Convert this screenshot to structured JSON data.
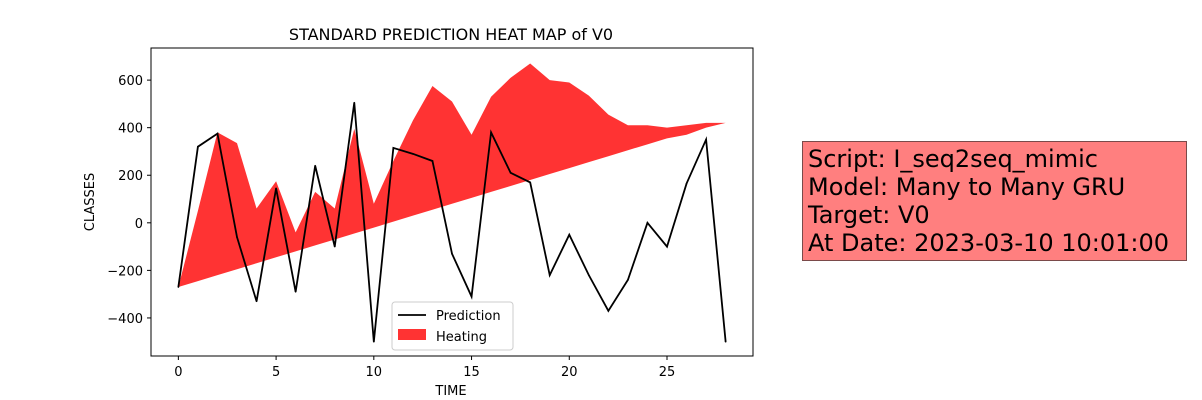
{
  "chart_data": {
    "type": "line",
    "title": "STANDARD PREDICTION HEAT MAP of V0",
    "xlabel": "TIME",
    "ylabel": "CLASSES",
    "xlim": [
      -1.4,
      29.4
    ],
    "ylim": [
      -560,
      735
    ],
    "xticks": [
      0,
      5,
      10,
      15,
      20,
      25
    ],
    "yticks": [
      -400,
      -200,
      0,
      200,
      400,
      600
    ],
    "legend_position": "lower center",
    "series": [
      {
        "name": "Prediction",
        "kind": "line",
        "color": "#000000",
        "x": [
          0,
          1,
          2,
          3,
          4,
          5,
          6,
          7,
          8,
          9,
          10,
          11,
          12,
          13,
          14,
          15,
          16,
          17,
          18,
          19,
          20,
          21,
          22,
          23,
          24,
          25,
          26,
          27,
          28
        ],
        "y": [
          -270,
          320,
          375,
          -60,
          -330,
          145,
          -290,
          240,
          -100,
          505,
          -500,
          315,
          290,
          260,
          -130,
          -310,
          380,
          210,
          170,
          -220,
          -50,
          -220,
          -370,
          -240,
          0,
          -100,
          165,
          350,
          -500
        ]
      },
      {
        "name": "Heating",
        "kind": "area",
        "color": "#ff3333",
        "x": [
          0,
          1,
          2,
          3,
          4,
          5,
          6,
          7,
          8,
          9,
          10,
          11,
          12,
          13,
          14,
          15,
          16,
          17,
          18,
          19,
          20,
          21,
          22,
          23,
          24,
          25,
          26,
          27,
          28
        ],
        "upper": [
          -270,
          50,
          380,
          335,
          60,
          175,
          -40,
          130,
          60,
          395,
          80,
          260,
          430,
          575,
          510,
          370,
          530,
          610,
          670,
          600,
          590,
          535,
          455,
          410,
          410,
          400,
          410,
          420,
          420
        ],
        "lower": [
          -270,
          -245,
          -220,
          -195,
          -170,
          -145,
          -120,
          -95,
          -70,
          -45,
          -20,
          5,
          30,
          55,
          80,
          105,
          130,
          155,
          180,
          205,
          230,
          255,
          280,
          305,
          330,
          355,
          370,
          400,
          420
        ]
      }
    ]
  },
  "info": {
    "line1": "Script: I_seq2seq_mimic",
    "line2": "Model: Many to Many GRU",
    "line3": "Target: V0",
    "line4": "At Date: 2023-03-10 10:01:00"
  }
}
